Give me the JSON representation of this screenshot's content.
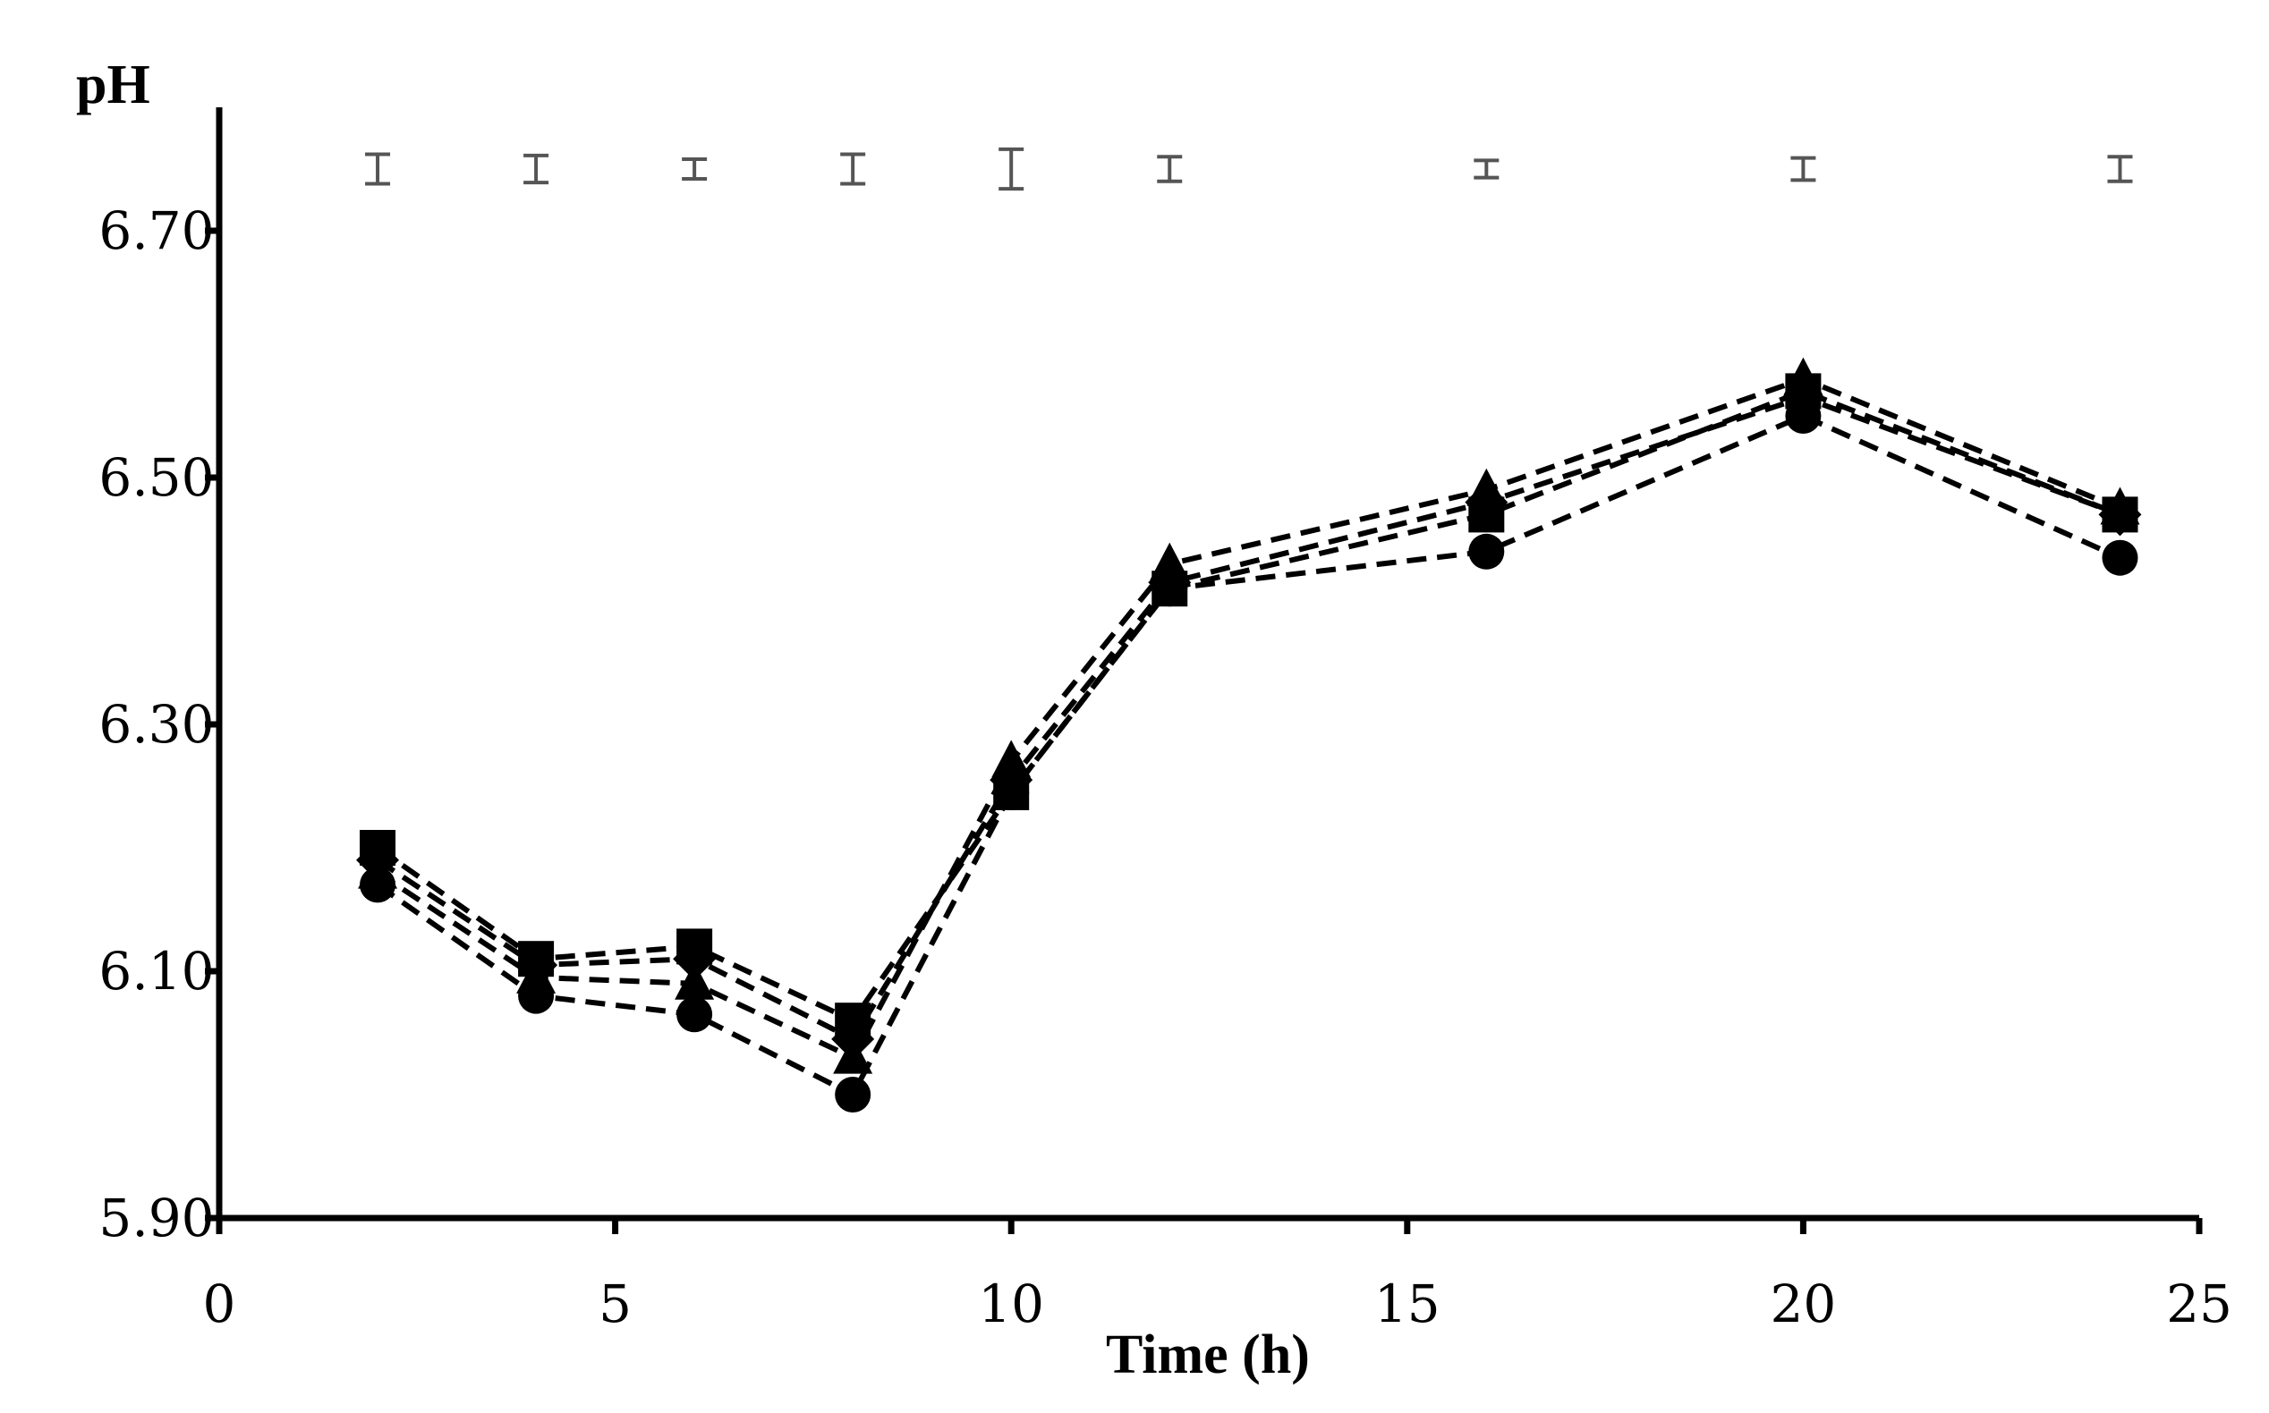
{
  "chart_data": {
    "type": "line",
    "title": "",
    "xlabel": "Time (h)",
    "ylabel": "pH",
    "xlim": [
      0,
      25
    ],
    "ylim": [
      5.9,
      6.8
    ],
    "x_ticks": [
      0,
      5,
      10,
      15,
      20,
      25
    ],
    "x_tick_labels": [
      "0",
      "5",
      "10",
      "15",
      "20",
      "25"
    ],
    "y_ticks": [
      5.9,
      6.1,
      6.3,
      6.5,
      6.7
    ],
    "y_tick_labels": [
      "5.90",
      "6.10",
      "6.30",
      "6.50",
      "6.70"
    ],
    "grid": false,
    "x": [
      2,
      4,
      6,
      8,
      10,
      12,
      16,
      20,
      24
    ],
    "series": [
      {
        "name": "circle",
        "marker": "circle",
        "values": [
          6.17,
          6.08,
          6.065,
          6.0,
          6.245,
          6.41,
          6.44,
          6.55,
          6.435
        ]
      },
      {
        "name": "triangle",
        "marker": "triangle",
        "values": [
          6.18,
          6.095,
          6.09,
          6.03,
          6.27,
          6.43,
          6.49,
          6.58,
          6.475
        ]
      },
      {
        "name": "diamond",
        "marker": "diamond",
        "values": [
          6.19,
          6.105,
          6.11,
          6.045,
          6.255,
          6.415,
          6.48,
          6.565,
          6.47
        ]
      },
      {
        "name": "square",
        "marker": "square",
        "values": [
          6.2,
          6.11,
          6.12,
          6.06,
          6.245,
          6.41,
          6.47,
          6.57,
          6.47
        ]
      }
    ],
    "error_bars": {
      "y_level": 6.75,
      "x": [
        2,
        4,
        6,
        8,
        10,
        12,
        16,
        20,
        24
      ],
      "half_widths": [
        0.012,
        0.011,
        0.008,
        0.012,
        0.016,
        0.01,
        0.007,
        0.009,
        0.01
      ]
    }
  }
}
